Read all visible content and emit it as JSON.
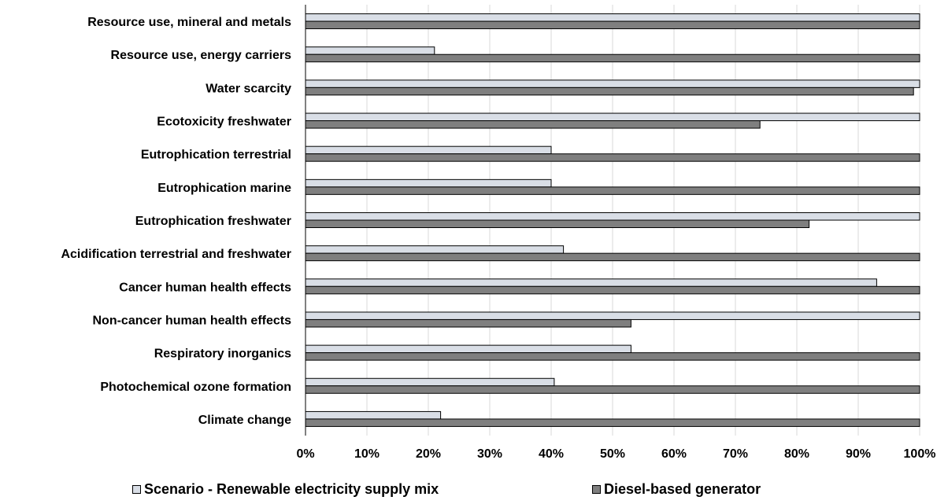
{
  "chart_data": {
    "type": "bar",
    "orientation": "horizontal",
    "categories": [
      "Resource use, mineral and metals",
      "Resource use, energy carriers",
      "Water scarcity",
      "Ecotoxicity freshwater",
      "Eutrophication terrestrial",
      "Eutrophication marine",
      "Eutrophication freshwater",
      "Acidification terrestrial and freshwater",
      "Cancer human health effects",
      "Non-cancer human health effects",
      "Respiratory inorganics",
      "Photochemical ozone formation",
      "Climate change"
    ],
    "series": [
      {
        "name": "Scenario - Renewable electricity supply mix",
        "color": "#d9dee6",
        "values": [
          100,
          21,
          100,
          100,
          40,
          40,
          100,
          42,
          93,
          100,
          53,
          40.5,
          22
        ]
      },
      {
        "name": "Diesel-based generator",
        "color": "#7f7f7f",
        "values": [
          100,
          100,
          99,
          74,
          100,
          100,
          82,
          100,
          100,
          53,
          100,
          100,
          100
        ]
      }
    ],
    "xlim": [
      0,
      100
    ],
    "x_ticks": [
      "0%",
      "10%",
      "20%",
      "30%",
      "40%",
      "50%",
      "60%",
      "70%",
      "80%",
      "90%",
      "100%"
    ],
    "grid": true,
    "legend_position": "bottom"
  }
}
